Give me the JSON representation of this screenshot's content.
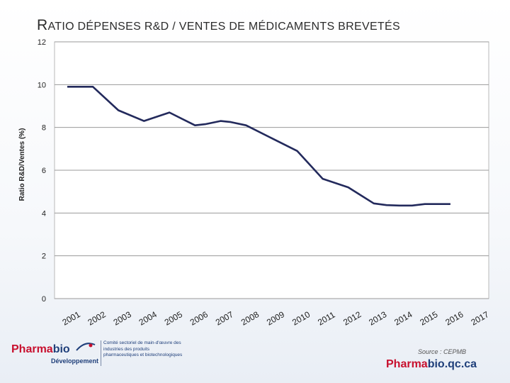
{
  "title": {
    "first_letter": "R",
    "rest": "ATIO DÉPENSES R&D / VENTES DE MÉDICAMENTS BREVETÉS"
  },
  "chart_data": {
    "type": "line",
    "title": "RATIO DÉPENSES R&D / VENTES DE MÉDICAMENTS BREVETÉS",
    "xlabel": "",
    "ylabel": "Ratio R&D/Ventes (%)",
    "ylim": [
      0,
      12
    ],
    "yticks": [
      0,
      2,
      4,
      6,
      8,
      10,
      12
    ],
    "grid": true,
    "categories": [
      "2001",
      "2002",
      "2003",
      "2004",
      "2005",
      "2006",
      "2007",
      "2008",
      "2009",
      "2010",
      "2011",
      "2012",
      "2013",
      "2014",
      "2015",
      "2016",
      "2017"
    ],
    "series": [
      {
        "name": "Ratio R&D/Ventes",
        "color": "#232a5c",
        "x": [
          2001,
          2002,
          2003,
          2004,
          2005,
          2006,
          2006.4,
          2007,
          2007.4,
          2008,
          2009,
          2010,
          2011,
          2012,
          2013,
          2013.5,
          2014,
          2014.5,
          2015,
          2016
        ],
        "values": [
          9.9,
          9.9,
          8.8,
          8.3,
          8.7,
          8.1,
          8.15,
          8.3,
          8.25,
          8.1,
          7.5,
          6.9,
          5.6,
          5.2,
          4.45,
          4.37,
          4.35,
          4.35,
          4.42,
          4.42
        ]
      }
    ]
  },
  "footer": {
    "logo_word_1": "Pharma",
    "logo_word_2": "bio",
    "logo_sub": "Développement",
    "logo_desc": "Comité sectoriel de main-d'œuvre des industries des produits pharmaceutiques et biotechnologiques",
    "source": "Source : CEPMB",
    "site_1": "Pharma",
    "site_2": "bio.qc.ca"
  }
}
